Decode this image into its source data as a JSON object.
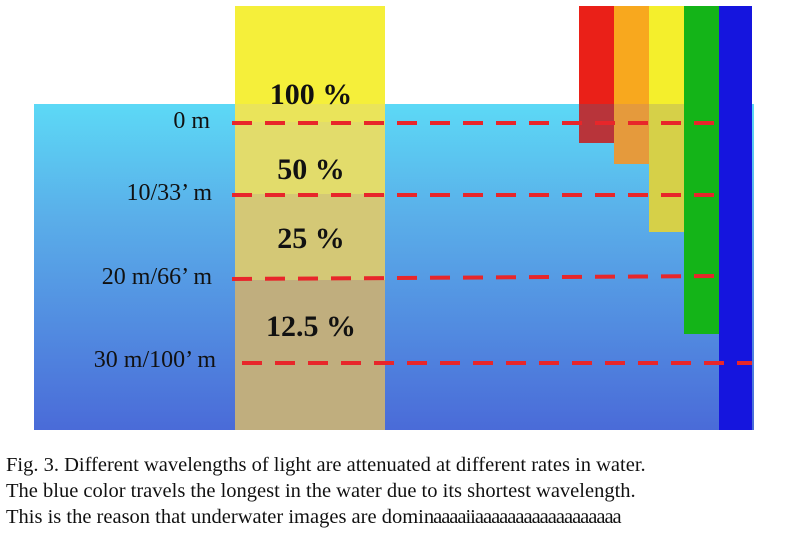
{
  "figure": {
    "percent_labels": [
      "100 %",
      "50 %",
      "25 %",
      "12.5 %"
    ],
    "depth_labels": [
      "0 m",
      "10/33’ m",
      "20 m/66’ m",
      "30 m/100’ m"
    ],
    "colors": {
      "water_top": "#5fd8f5",
      "water_bottom": "#4a6fd6",
      "sunlight_beam": "#f5ef3a",
      "depth_line": "#e8262a",
      "red": "#e8231c",
      "orange": "#f7a51e",
      "yellow": "#f3ee2c",
      "green": "#16b51a",
      "blue": "#1616e0"
    }
  },
  "caption": {
    "line1": "Fig. 3.   Different wavelengths of light are attenuated at different rates in water.",
    "line2": "The blue color travels the longest in the water due to its shortest wavelength.",
    "line3_prefix": "This is the reason that underwater images are domi",
    "line3_garbled": "naaaaiiaaaaaaaaaaaaaaaaaa"
  }
}
